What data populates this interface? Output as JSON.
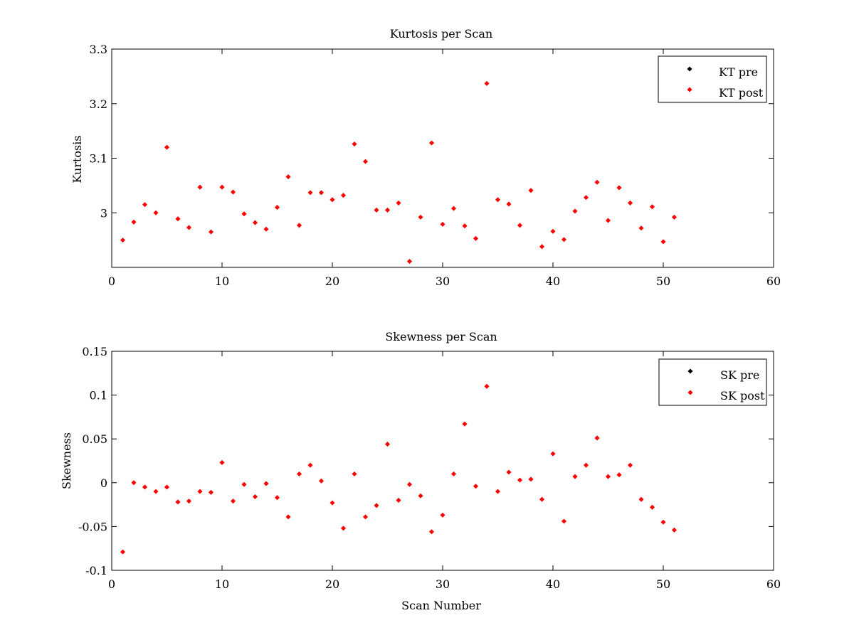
{
  "chart_data": [
    {
      "type": "scatter",
      "title": "Kurtosis per Scan",
      "xlabel": "",
      "ylabel": "Kurtosis",
      "xlim": [
        0,
        60
      ],
      "ylim": [
        2.9,
        3.3
      ],
      "x_ticks": [
        0,
        10,
        20,
        30,
        40,
        50,
        60
      ],
      "x_tick_labels": [
        "0",
        "10",
        "20",
        "30",
        "40",
        "50",
        "60"
      ],
      "y_ticks": [
        3.0,
        3.1,
        3.2,
        3.3
      ],
      "y_tick_labels": [
        "3",
        "3.1",
        "3.2",
        "3.3"
      ],
      "legend_position": "top-right",
      "series": [
        {
          "name": "KT pre",
          "color": "#000000",
          "x": [],
          "y": []
        },
        {
          "name": "KT post",
          "color": "#ff0000",
          "x": [
            1,
            2,
            3,
            4,
            5,
            6,
            7,
            8,
            9,
            10,
            11,
            12,
            13,
            14,
            15,
            16,
            17,
            18,
            19,
            20,
            21,
            22,
            23,
            24,
            25,
            26,
            27,
            28,
            29,
            30,
            31,
            32,
            33,
            34,
            35,
            36,
            37,
            38,
            39,
            40,
            41,
            42,
            43,
            44,
            45,
            46,
            47,
            48,
            49,
            50,
            51
          ],
          "y": [
            2.95,
            2.983,
            3.015,
            3.0,
            3.12,
            2.989,
            2.973,
            3.047,
            2.965,
            3.047,
            3.038,
            2.998,
            2.982,
            2.97,
            3.01,
            3.066,
            2.977,
            3.037,
            3.037,
            3.024,
            3.032,
            3.126,
            3.094,
            3.005,
            3.005,
            3.018,
            2.911,
            2.992,
            3.128,
            2.979,
            3.008,
            2.976,
            2.953,
            3.237,
            3.024,
            3.016,
            2.977,
            3.041,
            2.938,
            2.966,
            2.951,
            3.003,
            3.028,
            3.056,
            2.986,
            3.046,
            3.018,
            2.972,
            3.011,
            2.947,
            2.992
          ]
        }
      ]
    },
    {
      "type": "scatter",
      "title": "Skewness per Scan",
      "xlabel": "Scan Number",
      "ylabel": "Skewness",
      "xlim": [
        0,
        60
      ],
      "ylim": [
        -0.1,
        0.15
      ],
      "x_ticks": [
        0,
        10,
        20,
        30,
        40,
        50,
        60
      ],
      "x_tick_labels": [
        "0",
        "10",
        "20",
        "30",
        "40",
        "50",
        "60"
      ],
      "y_ticks": [
        -0.1,
        -0.05,
        0,
        0.05,
        0.1,
        0.15
      ],
      "y_tick_labels": [
        "-0.1",
        "-0.05",
        "0",
        "0.05",
        "0.1",
        "0.15"
      ],
      "legend_position": "top-right",
      "series": [
        {
          "name": "SK pre",
          "color": "#000000",
          "x": [],
          "y": []
        },
        {
          "name": "SK post",
          "color": "#ff0000",
          "x": [
            1,
            2,
            3,
            4,
            5,
            6,
            7,
            8,
            9,
            10,
            11,
            12,
            13,
            14,
            15,
            16,
            17,
            18,
            19,
            20,
            21,
            22,
            23,
            24,
            25,
            26,
            27,
            28,
            29,
            30,
            31,
            32,
            33,
            34,
            35,
            36,
            37,
            38,
            39,
            40,
            41,
            42,
            43,
            44,
            45,
            46,
            47,
            48,
            49,
            50,
            51
          ],
          "y": [
            -0.079,
            0.0,
            -0.005,
            -0.01,
            -0.005,
            -0.022,
            -0.021,
            -0.01,
            -0.011,
            0.023,
            -0.021,
            -0.002,
            -0.016,
            -0.001,
            -0.017,
            -0.039,
            0.01,
            0.02,
            0.002,
            -0.023,
            -0.052,
            0.01,
            -0.039,
            -0.026,
            0.044,
            -0.02,
            -0.002,
            -0.015,
            -0.056,
            -0.037,
            0.01,
            0.067,
            -0.004,
            0.11,
            -0.01,
            0.012,
            0.003,
            0.004,
            -0.019,
            0.033,
            -0.044,
            0.007,
            0.02,
            0.051,
            0.007,
            0.009,
            0.02,
            -0.019,
            -0.028,
            -0.045,
            -0.054
          ]
        }
      ]
    }
  ]
}
